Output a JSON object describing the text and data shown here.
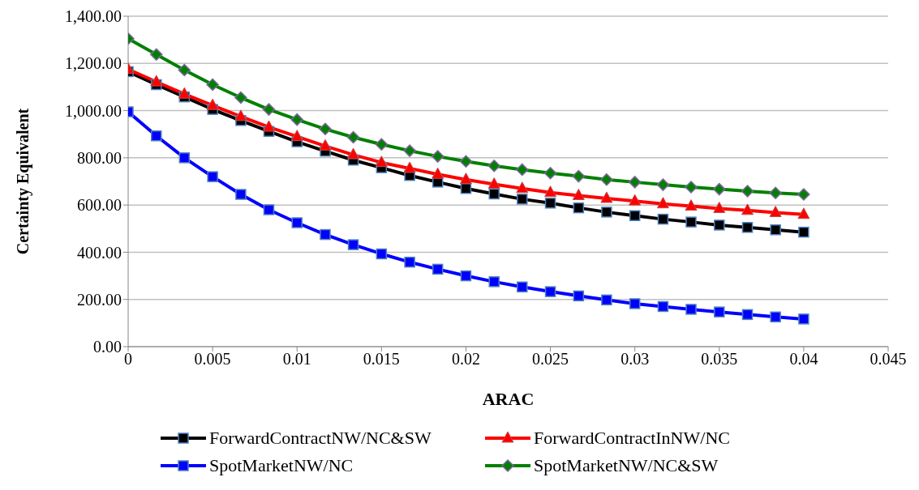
{
  "chart_data": {
    "type": "line",
    "xlabel": "ARAC",
    "ylabel": "Certainty Equivalent",
    "x": [
      0,
      0.00167,
      0.00333,
      0.005,
      0.00667,
      0.00833,
      0.01,
      0.01167,
      0.01333,
      0.015,
      0.01667,
      0.01833,
      0.02,
      0.02167,
      0.02333,
      0.025,
      0.02667,
      0.02833,
      0.03,
      0.03167,
      0.03333,
      0.035,
      0.03667,
      0.03833,
      0.04
    ],
    "series": [
      {
        "name": "ForwardContractNW/NC&SW",
        "color": "#000000",
        "marker": "square",
        "values": [
          1165,
          1110,
          1058,
          1005,
          958,
          912,
          868,
          828,
          790,
          758,
          725,
          697,
          670,
          647,
          625,
          608,
          588,
          570,
          555,
          540,
          528,
          515,
          505,
          495,
          485
        ]
      },
      {
        "name": "ForwardContractInNW/NC",
        "color": "#ff0000",
        "marker": "triangle",
        "values": [
          1175,
          1122,
          1070,
          1022,
          975,
          930,
          890,
          850,
          813,
          780,
          755,
          730,
          708,
          688,
          670,
          653,
          640,
          628,
          617,
          605,
          595,
          585,
          577,
          568,
          560
        ]
      },
      {
        "name": "SpotMarketNW/NC",
        "color": "#0000ff",
        "marker": "square",
        "values": [
          995,
          893,
          800,
          720,
          645,
          580,
          525,
          475,
          432,
          393,
          358,
          328,
          300,
          275,
          253,
          233,
          215,
          198,
          182,
          170,
          158,
          147,
          136,
          126,
          117
        ]
      },
      {
        "name": "SpotMarketNW/NC&SW",
        "color": "#008000",
        "marker": "diamond",
        "values": [
          1305,
          1238,
          1172,
          1110,
          1055,
          1005,
          962,
          922,
          887,
          857,
          830,
          806,
          785,
          766,
          750,
          735,
          722,
          708,
          697,
          686,
          676,
          667,
          659,
          651,
          645
        ]
      }
    ],
    "xlim": [
      0,
      0.045
    ],
    "xticks": [
      0,
      0.005,
      0.01,
      0.015,
      0.02,
      0.025,
      0.03,
      0.035,
      0.04,
      0.045
    ],
    "ylim": [
      0,
      1400
    ],
    "yticks": [
      {
        "value": 0,
        "label": "0.00"
      },
      {
        "value": 200,
        "label": "200.00"
      },
      {
        "value": 400,
        "label": "400.00"
      },
      {
        "value": 600,
        "label": "600.00"
      },
      {
        "value": 800,
        "label": "800.00"
      },
      {
        "value": 1000,
        "label": "1,000.00"
      },
      {
        "value": 1200,
        "label": "1,200.00"
      },
      {
        "value": 1400,
        "label": "1,400.00"
      }
    ],
    "grid": "y",
    "legend": "bottom",
    "line_style": "solid"
  }
}
